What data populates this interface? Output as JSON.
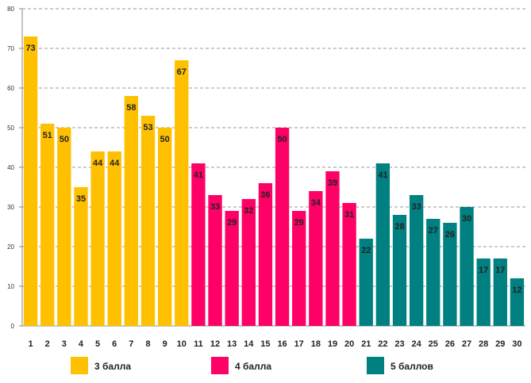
{
  "chart_data": {
    "type": "bar",
    "categories": [
      "1",
      "2",
      "3",
      "4",
      "5",
      "6",
      "7",
      "8",
      "9",
      "10",
      "11",
      "12",
      "13",
      "14",
      "15",
      "16",
      "17",
      "18",
      "19",
      "20",
      "21",
      "22",
      "23",
      "24",
      "25",
      "26",
      "27",
      "28",
      "29",
      "30"
    ],
    "values": [
      73,
      51,
      50,
      35,
      44,
      44,
      58,
      53,
      50,
      67,
      41,
      33,
      29,
      32,
      36,
      50,
      29,
      34,
      39,
      31,
      22,
      41,
      28,
      33,
      27,
      26,
      30,
      17,
      17,
      12
    ],
    "groups": [
      {
        "name": "3 балла",
        "color": "#FFC000",
        "start": 1,
        "end": 10
      },
      {
        "name": "4 балла",
        "color": "#FF0066",
        "start": 11,
        "end": 20
      },
      {
        "name": "5 баллов",
        "color": "#008080",
        "start": 21,
        "end": 30
      }
    ],
    "yticks": [
      "0",
      "10",
      "20",
      "30",
      "40",
      "50",
      "60",
      "70",
      "80"
    ],
    "ylim": [
      0,
      80
    ],
    "grid": true,
    "grid_style": "dashed",
    "legend_position": "bottom",
    "data_labels": "inside-top",
    "title": "",
    "xlabel": "",
    "ylabel": ""
  }
}
